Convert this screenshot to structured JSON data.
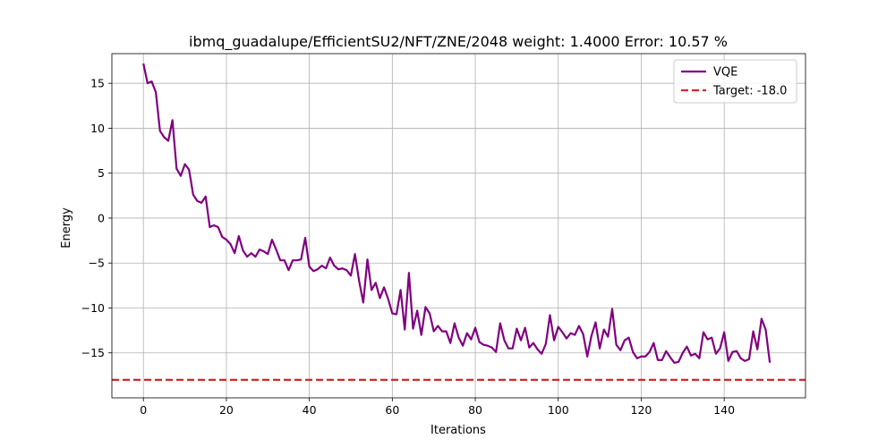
{
  "chart_data": {
    "type": "line",
    "title": "ibmq_guadalupe/EfficientSU2/NFT/ZNE/2048 weight: 1.4000 Error: 10.57 %",
    "xlabel": "Iterations",
    "ylabel": "Energy",
    "xlim": [
      -7.6,
      159.6
    ],
    "ylim": [
      -20,
      18.3
    ],
    "xticks": [
      0,
      20,
      40,
      60,
      80,
      100,
      120,
      140
    ],
    "yticks": [
      15,
      10,
      5,
      0,
      -5,
      -10,
      -15
    ],
    "grid": true,
    "legend_position": "top-right",
    "series": [
      {
        "name": "VQE",
        "color": "#800080",
        "style": "solid",
        "x": [
          0,
          1,
          2,
          3,
          4,
          5,
          6,
          7,
          8,
          9,
          10,
          11,
          12,
          13,
          14,
          15,
          16,
          17,
          18,
          19,
          20,
          21,
          22,
          23,
          24,
          25,
          26,
          27,
          28,
          29,
          30,
          31,
          32,
          33,
          34,
          35,
          36,
          37,
          38,
          39,
          40,
          41,
          42,
          43,
          44,
          45,
          46,
          47,
          48,
          49,
          50,
          51,
          52,
          53,
          54,
          55,
          56,
          57,
          58,
          59,
          60,
          61,
          62,
          63,
          64,
          65,
          66,
          67,
          68,
          69,
          70,
          71,
          72,
          73,
          74,
          75,
          76,
          77,
          78,
          79,
          80,
          81,
          82,
          83,
          84,
          85,
          86,
          87,
          88,
          89,
          90,
          91,
          92,
          93,
          94,
          95,
          96,
          97,
          98,
          99,
          100,
          101,
          102,
          103,
          104,
          105,
          106,
          107,
          108,
          109,
          110,
          111,
          112,
          113,
          114,
          115,
          116,
          117,
          118,
          119,
          120,
          121,
          122,
          123,
          124,
          125,
          126,
          127,
          128,
          129,
          130,
          131,
          132,
          133,
          134,
          135,
          136,
          137,
          138,
          139,
          140,
          141,
          142,
          143,
          144,
          145,
          146,
          147,
          148,
          149,
          150,
          151
        ],
        "y": [
          17.2,
          15.0,
          15.2,
          14.0,
          9.7,
          9.0,
          8.6,
          10.9,
          5.5,
          4.7,
          6.0,
          5.4,
          2.6,
          1.9,
          1.7,
          2.4,
          -1.0,
          -0.8,
          -1.0,
          -2.1,
          -2.4,
          -2.9,
          -3.9,
          -2.0,
          -3.6,
          -4.3,
          -3.9,
          -4.3,
          -3.5,
          -3.7,
          -4.0,
          -2.4,
          -3.5,
          -4.7,
          -4.7,
          -5.8,
          -4.7,
          -4.7,
          -4.6,
          -2.2,
          -5.4,
          -5.9,
          -5.7,
          -5.3,
          -5.6,
          -4.4,
          -5.3,
          -5.7,
          -5.6,
          -5.8,
          -6.4,
          -4.0,
          -7.0,
          -9.4,
          -4.6,
          -8.0,
          -7.2,
          -8.9,
          -7.7,
          -9.0,
          -10.6,
          -10.7,
          -8.0,
          -12.4,
          -6.1,
          -12.3,
          -10.3,
          -13.0,
          -9.9,
          -10.6,
          -12.6,
          -12.0,
          -12.6,
          -12.6,
          -13.9,
          -11.7,
          -13.3,
          -14.2,
          -12.8,
          -13.5,
          -12.2,
          -13.8,
          -14.1,
          -14.2,
          -14.4,
          -14.9,
          -11.7,
          -13.6,
          -14.5,
          -14.5,
          -12.3,
          -13.6,
          -12.2,
          -14.4,
          -13.9,
          -14.6,
          -15.1,
          -14.0,
          -10.8,
          -13.6,
          -12.1,
          -12.7,
          -13.4,
          -12.8,
          -13.0,
          -12.0,
          -12.9,
          -15.4,
          -13.1,
          -11.6,
          -14.5,
          -12.4,
          -13.2,
          -10.1,
          -14.1,
          -14.7,
          -13.6,
          -13.3,
          -14.9,
          -15.6,
          -15.4,
          -15.4,
          -14.9,
          -13.9,
          -15.8,
          -15.8,
          -14.8,
          -15.5,
          -16.1,
          -16.0,
          -15.0,
          -14.3,
          -15.3,
          -15.1,
          -15.6,
          -12.7,
          -13.5,
          -13.3,
          -15.1,
          -14.5,
          -12.7,
          -15.9,
          -14.9,
          -14.8,
          -15.6,
          -15.9,
          -15.7,
          -12.6,
          -14.6,
          -11.2,
          -12.4,
          -16.1
        ]
      },
      {
        "name": "Target: -18.0",
        "color": "#d62728",
        "style": "dashed",
        "y_constant": -18.0
      }
    ]
  }
}
